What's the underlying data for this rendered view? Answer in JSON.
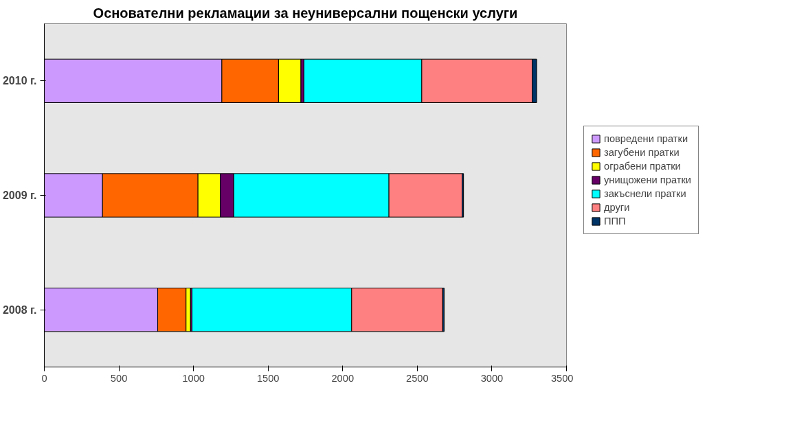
{
  "chart_data": {
    "type": "bar",
    "orientation": "horizontal",
    "stacked": true,
    "title": "Основателни рекламации за неуниверсални пощенски услуги",
    "categories": [
      "2010 г.",
      "2009 г.",
      "2008 г."
    ],
    "series": [
      {
        "name": "повредени пратки",
        "color": "#cc99ff",
        "values": [
          1190,
          390,
          760
        ]
      },
      {
        "name": "загубени пратки",
        "color": "#ff6600",
        "values": [
          380,
          640,
          190
        ]
      },
      {
        "name": "ограбени пратки",
        "color": "#ffff00",
        "values": [
          150,
          150,
          30
        ]
      },
      {
        "name": "унищожени пратки",
        "color": "#660066",
        "values": [
          20,
          90,
          10
        ]
      },
      {
        "name": "закъснели пратки",
        "color": "#00ffff",
        "values": [
          790,
          1040,
          1070
        ]
      },
      {
        "name": "други",
        "color": "#ff8080",
        "values": [
          740,
          490,
          610
        ]
      },
      {
        "name": "ППП",
        "color": "#003366",
        "values": [
          30,
          10,
          10
        ]
      }
    ],
    "xlim": [
      0,
      3500
    ],
    "xticks": [
      0,
      500,
      1000,
      1500,
      2000,
      2500,
      3000,
      3500
    ],
    "grid": false,
    "legend": "right"
  }
}
